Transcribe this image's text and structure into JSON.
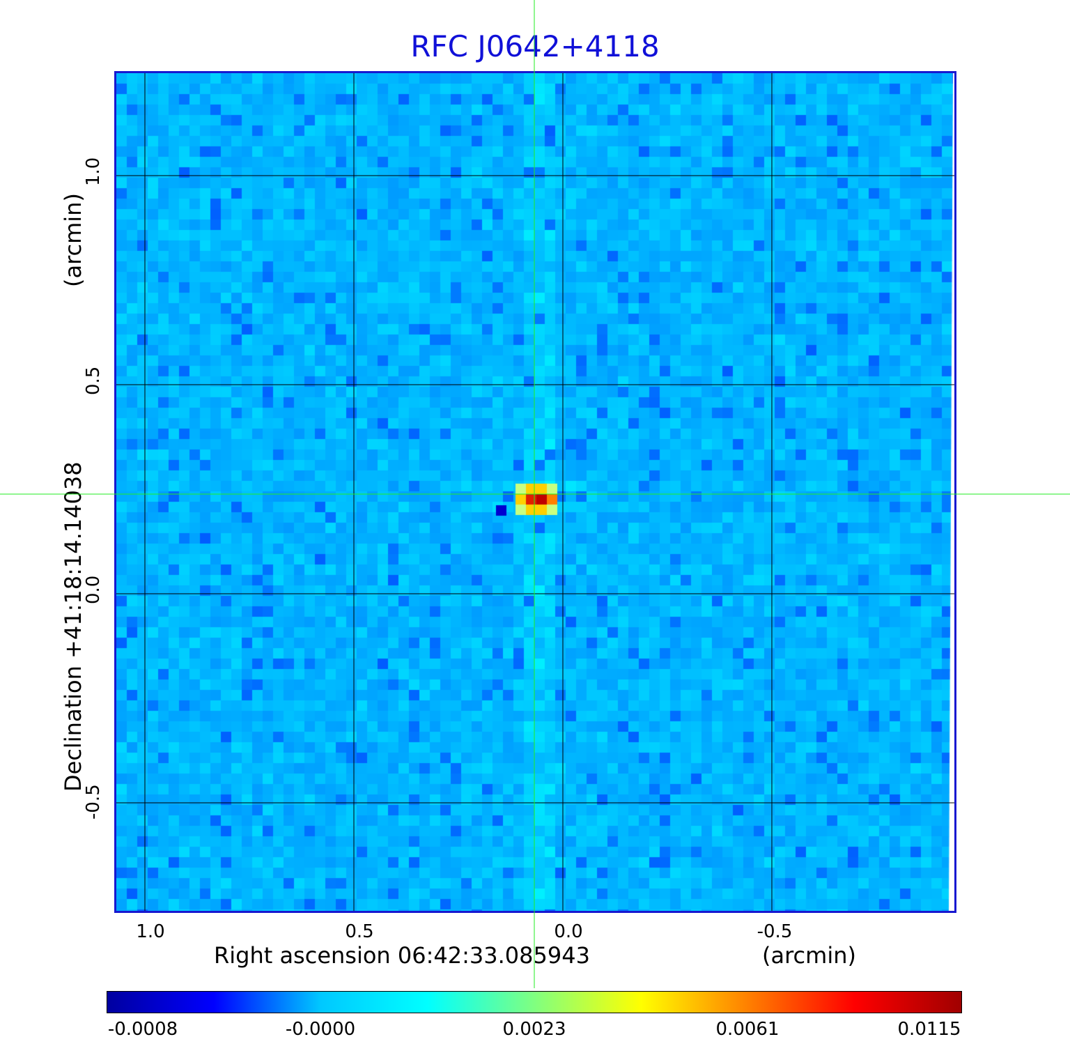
{
  "title": "RFC J0642+4118",
  "x_axis": {
    "label": "Right ascension  06:42:33.085943",
    "unit": "(arcmin)",
    "ticks": [
      "1.0",
      "0.5",
      "0.0",
      "-0.5"
    ]
  },
  "y_axis": {
    "label": "Declination  +41:18:14.14038",
    "unit": "(arcmin)",
    "ticks": [
      "1.0",
      "0.5",
      "0.0",
      "-0.5"
    ]
  },
  "colorbar": {
    "ticks": [
      "-0.0008",
      "-0.0000",
      "0.0023",
      "0.0061",
      "0.0115"
    ],
    "colors": [
      "#0000a0",
      "#0000ff",
      "#00c8ff",
      "#00ffff",
      "#80ff80",
      "#ffff00",
      "#ff8000",
      "#ff0000",
      "#a00000"
    ]
  },
  "crosshair_color": "#22ee22"
}
